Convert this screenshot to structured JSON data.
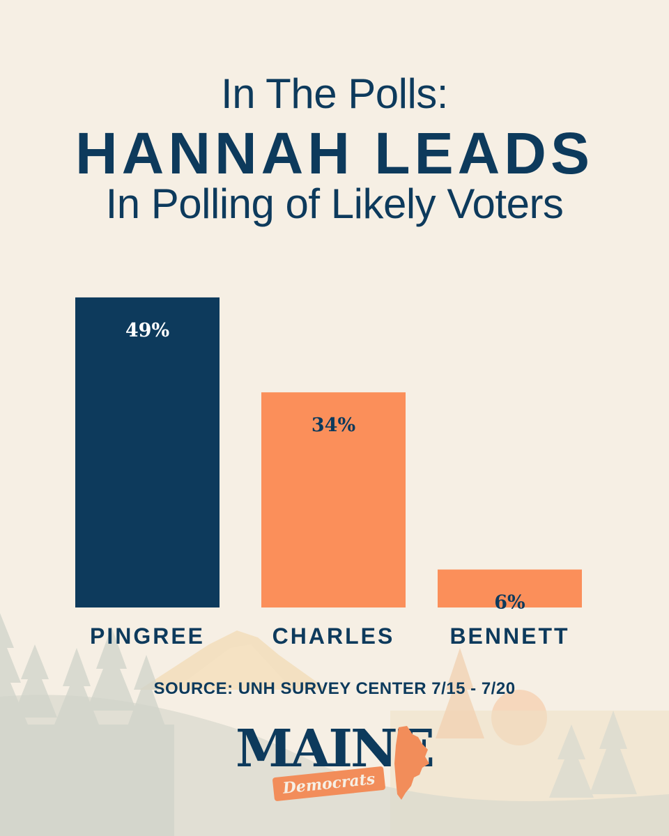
{
  "header": {
    "title_line1": "In The Polls:",
    "title_line2": "HANNAH LEADS",
    "title_line3": "In Polling of Likely Voters"
  },
  "colors": {
    "background": "#f6efe4",
    "navy": "#0d3a5c",
    "orange": "#fb8f5a",
    "label_on_navy": "#ffffff",
    "label_on_orange": "#0d3a5c"
  },
  "chart_data": {
    "type": "bar",
    "categories": [
      "PINGREE",
      "CHARLES",
      "BENNETT"
    ],
    "values": [
      49,
      34,
      6
    ],
    "value_labels": [
      "49%",
      "34%",
      "6%"
    ],
    "bar_colors": [
      "#0d3a5c",
      "#fb8f5a",
      "#fb8f5a"
    ],
    "ylim": [
      0,
      60
    ],
    "grid": false,
    "legend": "none"
  },
  "footer": {
    "source": "SOURCE: UNH SURVEY CENTER 7/15 - 7/20"
  },
  "logo": {
    "word": "MAINE",
    "sub": "Democrats",
    "state_icon": "maine-state-icon"
  }
}
